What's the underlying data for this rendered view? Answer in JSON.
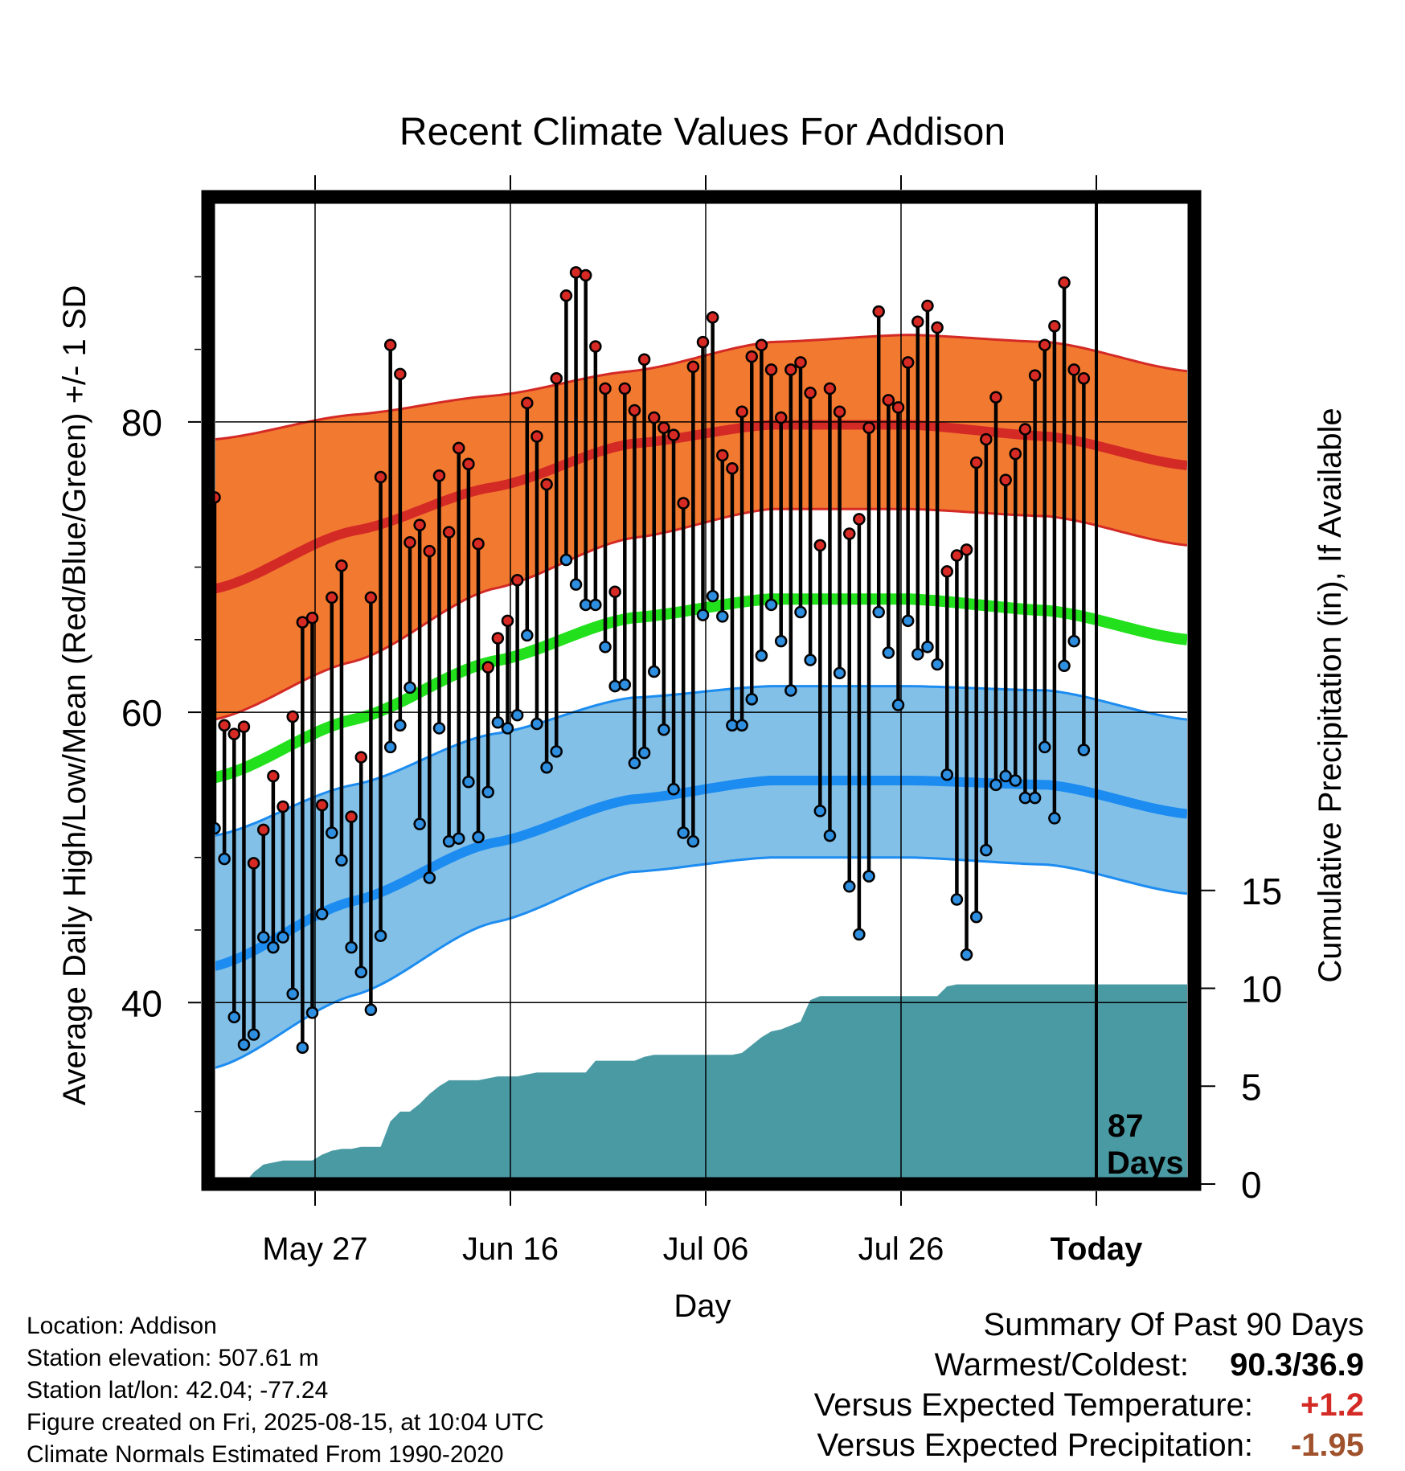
{
  "chart_data": {
    "type": "line",
    "title": "Recent Climate Values For Addison",
    "xlabel": "Day",
    "ylabel": "Average Daily High/Low/Mean (Red/Blue/Green) +/- 1 SD",
    "ylabel_right": "Cumulative Precipitation (in), If Available",
    "x_ticks": [
      "May 27",
      "Jun 16",
      "Jul 06",
      "Jul 26",
      "Today"
    ],
    "y_ticks": [
      40,
      60,
      80
    ],
    "y2_ticks": [
      0,
      5,
      10,
      15
    ],
    "y_range": [
      27.5,
      95.5
    ],
    "y2_range": [
      0,
      15
    ],
    "today_marker": "87",
    "today_marker_sub": "Days",
    "colors": {
      "high_band": "#f27a30",
      "high_mean": "#d42a26",
      "low_band": "#82c0e8",
      "low_mean": "#1c8cf0",
      "mean": "#22e01c",
      "precip": "#4a9aa4",
      "high_point": "#d82a24",
      "low_point": "#2e8ee0"
    },
    "normals": {
      "high_mean": [
        [
          0,
          68.5
        ],
        [
          20,
          72.5
        ],
        [
          40,
          75.5
        ],
        [
          60,
          78.5
        ],
        [
          80,
          79.8
        ],
        [
          100,
          79.8
        ],
        [
          120,
          79.0
        ],
        [
          140,
          77.0
        ]
      ],
      "high_upper": [
        [
          0,
          78.8
        ],
        [
          20,
          80.5
        ],
        [
          40,
          81.8
        ],
        [
          60,
          83.5
        ],
        [
          80,
          85.5
        ],
        [
          100,
          86.0
        ],
        [
          120,
          85.5
        ],
        [
          140,
          83.5
        ]
      ],
      "high_lower": [
        [
          0,
          59.5
        ],
        [
          20,
          63.5
        ],
        [
          40,
          68.5
        ],
        [
          60,
          72.0
        ],
        [
          80,
          74.0
        ],
        [
          100,
          74.0
        ],
        [
          120,
          73.5
        ],
        [
          140,
          71.5
        ]
      ],
      "low_mean": [
        [
          0,
          42.5
        ],
        [
          20,
          47.0
        ],
        [
          40,
          51.0
        ],
        [
          60,
          54.0
        ],
        [
          80,
          55.3
        ],
        [
          100,
          55.3
        ],
        [
          120,
          55.0
        ],
        [
          140,
          53.0
        ]
      ],
      "low_upper": [
        [
          0,
          51.5
        ],
        [
          20,
          55.0
        ],
        [
          40,
          58.5
        ],
        [
          60,
          61.0
        ],
        [
          80,
          61.8
        ],
        [
          100,
          61.8
        ],
        [
          120,
          61.5
        ],
        [
          140,
          59.5
        ]
      ],
      "low_lower": [
        [
          0,
          35.5
        ],
        [
          20,
          40.5
        ],
        [
          40,
          45.5
        ],
        [
          60,
          49.0
        ],
        [
          80,
          50.0
        ],
        [
          100,
          50.0
        ],
        [
          120,
          49.5
        ],
        [
          140,
          47.5
        ]
      ],
      "mean": [
        [
          0,
          55.5
        ],
        [
          20,
          59.5
        ],
        [
          40,
          63.5
        ],
        [
          60,
          66.5
        ],
        [
          80,
          67.8
        ],
        [
          100,
          67.8
        ],
        [
          120,
          67.0
        ],
        [
          140,
          65.0
        ]
      ]
    },
    "daily": {
      "high": [
        74.8,
        59.1,
        58.5,
        59.0,
        49.6,
        51.9,
        55.6,
        53.5,
        59.7,
        66.2,
        66.5,
        53.6,
        67.9,
        70.1,
        52.8,
        56.9,
        67.9,
        76.2,
        85.3,
        83.3,
        71.7,
        72.9,
        71.1,
        76.3,
        72.4,
        78.2,
        77.1,
        71.6,
        63.1,
        65.1,
        66.3,
        69.1,
        81.3,
        79.0,
        75.7,
        83.0,
        88.7,
        90.3,
        90.1,
        85.2,
        82.3,
        68.3,
        82.3,
        80.8,
        84.3,
        80.3,
        79.6,
        79.1,
        74.4,
        83.8,
        85.5,
        87.2,
        77.7,
        76.8,
        80.7,
        84.5,
        85.3,
        83.6,
        80.3,
        83.6,
        84.1,
        82.0,
        71.5,
        82.3,
        80.7,
        72.3,
        73.3,
        79.6,
        87.6,
        81.5,
        81.0,
        84.1,
        86.9,
        88.0,
        86.5,
        69.7,
        70.8,
        71.2,
        77.2,
        78.8,
        81.7,
        76.0,
        77.8,
        79.5,
        83.2,
        85.3,
        86.6,
        89.6,
        83.6,
        83.0
      ],
      "low": [
        52.0,
        49.9,
        39.0,
        37.1,
        37.8,
        44.5,
        43.8,
        44.5,
        40.6,
        36.9,
        39.3,
        46.1,
        51.7,
        49.8,
        43.8,
        42.1,
        39.5,
        44.6,
        57.6,
        59.1,
        61.7,
        52.3,
        48.6,
        58.9,
        51.1,
        51.3,
        55.2,
        51.4,
        54.5,
        59.3,
        58.9,
        59.8,
        65.3,
        59.2,
        56.2,
        57.3,
        70.5,
        68.8,
        67.4,
        67.4,
        64.5,
        61.8,
        61.9,
        56.5,
        57.2,
        62.8,
        58.8,
        54.7,
        51.7,
        51.1,
        66.7,
        68.0,
        66.6,
        59.1,
        59.1,
        60.9,
        63.9,
        67.4,
        64.9,
        61.5,
        66.9,
        63.6,
        53.2,
        51.5,
        62.7,
        48.0,
        44.7,
        48.7,
        66.9,
        64.1,
        60.5,
        66.3,
        64.0,
        64.5,
        63.3,
        55.7,
        47.1,
        43.3,
        45.9,
        50.5,
        55.0,
        55.6,
        55.3,
        54.1,
        54.1,
        57.6,
        52.7,
        63.2,
        64.9,
        57.4
      ],
      "precip_cumulative": [
        0.0,
        0.0,
        0.0,
        0.0,
        0.6,
        1.0,
        1.1,
        1.2,
        1.2,
        1.2,
        1.2,
        1.5,
        1.7,
        1.8,
        1.8,
        1.9,
        1.9,
        1.9,
        3.2,
        3.7,
        3.7,
        4.1,
        4.6,
        5.0,
        5.3,
        5.3,
        5.3,
        5.3,
        5.4,
        5.5,
        5.5,
        5.5,
        5.6,
        5.7,
        5.7,
        5.7,
        5.7,
        5.7,
        5.7,
        6.3,
        6.3,
        6.3,
        6.3,
        6.3,
        6.5,
        6.6,
        6.6,
        6.6,
        6.6,
        6.6,
        6.6,
        6.6,
        6.6,
        6.6,
        6.7,
        7.1,
        7.5,
        7.8,
        7.9,
        8.1,
        8.3,
        9.4,
        9.6,
        9.6,
        9.6,
        9.6,
        9.6,
        9.6,
        9.6,
        9.6,
        9.6,
        9.6,
        9.6,
        9.6,
        9.6,
        10.1,
        10.2,
        10.2,
        10.2,
        10.2,
        10.2,
        10.2,
        10.2,
        10.2,
        10.2,
        10.2,
        10.2,
        10.2,
        10.2,
        10.2,
        10.2
      ]
    }
  },
  "footer": {
    "location": "Location: Addison",
    "elevation": "Station elevation: 507.61 m",
    "latlon": "Station lat/lon: 42.04; -77.24",
    "created": "Figure created on Fri, 2025-08-15, at 10:04 UTC",
    "normals": "Climate Normals Estimated From 1990-2020"
  },
  "summary": {
    "title": "Summary Of Past 90 Days",
    "warmest_label": "Warmest/Coldest:",
    "warmest_value": "90.3/36.9",
    "temp_label": "Versus Expected Temperature:",
    "temp_value": "+1.2",
    "temp_color": "#d42a26",
    "precip_label": "Versus Expected Precipitation:",
    "precip_value": "-1.95",
    "precip_color": "#a0522d"
  }
}
